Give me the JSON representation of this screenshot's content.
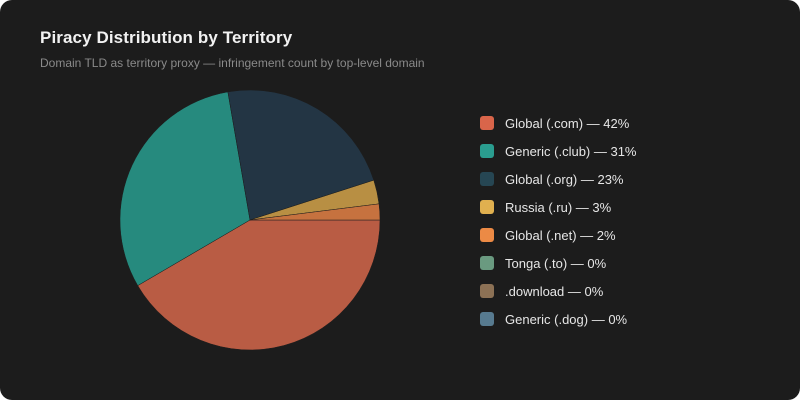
{
  "header": {
    "title": "Piracy Distribution by Territory",
    "subtitle": "Domain TLD as territory proxy — infringement count by top-level domain"
  },
  "legend": {
    "items": [
      {
        "label": "Global (.com) — 42%",
        "color": "#d9654a"
      },
      {
        "label": "Generic (.club) — 31%",
        "color": "#2a9d8f"
      },
      {
        "label": "Global (.org) — 23%",
        "color": "#264653"
      },
      {
        "label": "Russia (.ru) — 3%",
        "color": "#e0b04f"
      },
      {
        "label": "Global (.net) — 2%",
        "color": "#ec8a45"
      },
      {
        "label": "Tonga (.to) — 0%",
        "color": "#6a9a80"
      },
      {
        "label": ".download — 0%",
        "color": "#8c7155"
      },
      {
        "label": "Generic (.dog) — 0%",
        "color": "#577a8f"
      }
    ]
  },
  "chart_data": {
    "type": "pie",
    "title": "Piracy Distribution by Territory",
    "subtitle": "Domain TLD as territory proxy — infringement count by top-level domain",
    "categories": [
      "Global (.com)",
      "Generic (.club)",
      "Global (.org)",
      "Russia (.ru)",
      "Global (.net)",
      "Tonga (.to)",
      ".download",
      "Generic (.dog)"
    ],
    "values": [
      42,
      31,
      23,
      3,
      2,
      0,
      0,
      0
    ],
    "unit": "%",
    "slice_colors": [
      "#b95c44",
      "#268a7e",
      "#233544",
      "#b88f43",
      "#c6723f",
      "#6a9a80",
      "#8c7155",
      "#577a8f"
    ],
    "legend_position": "right",
    "start_angle_deg": 0,
    "direction": "clockwise"
  }
}
